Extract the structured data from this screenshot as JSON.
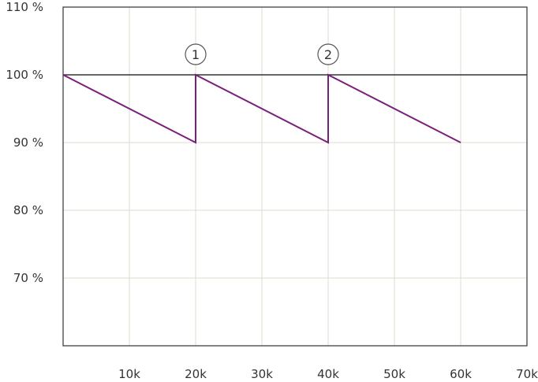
{
  "chart_data": {
    "type": "line",
    "title": "",
    "xlabel": "",
    "ylabel": "",
    "xlim": [
      0,
      70000
    ],
    "ylim": [
      60,
      110
    ],
    "grid": true,
    "x_ticks": [
      {
        "value": 10000,
        "label": "10k"
      },
      {
        "value": 20000,
        "label": "20k"
      },
      {
        "value": 30000,
        "label": "30k"
      },
      {
        "value": 40000,
        "label": "40k"
      },
      {
        "value": 50000,
        "label": "50k"
      },
      {
        "value": 60000,
        "label": "60k"
      },
      {
        "value": 70000,
        "label": "70k"
      }
    ],
    "y_ticks": [
      {
        "value": 70,
        "label": "70 %"
      },
      {
        "value": 80,
        "label": "80 %"
      },
      {
        "value": 90,
        "label": "90 %"
      },
      {
        "value": 100,
        "label": "100 %"
      },
      {
        "value": 110,
        "label": "110 %"
      }
    ],
    "reference_line": {
      "y": 100,
      "color": "#333333"
    },
    "series": [
      {
        "color": "#7a1f7a",
        "points": [
          {
            "x": 0,
            "y": 100
          },
          {
            "x": 20000,
            "y": 90
          },
          {
            "x": 20000,
            "y": 100
          },
          {
            "x": 40000,
            "y": 90
          },
          {
            "x": 40000,
            "y": 100
          },
          {
            "x": 60000,
            "y": 90
          }
        ]
      }
    ],
    "annotations": [
      {
        "x": 20000,
        "y": 100,
        "label": "1"
      },
      {
        "x": 40000,
        "y": 100,
        "label": "2"
      }
    ],
    "colors": {
      "grid": "#dcdccc",
      "axis": "#333333",
      "line": "#7a1f7a"
    }
  }
}
